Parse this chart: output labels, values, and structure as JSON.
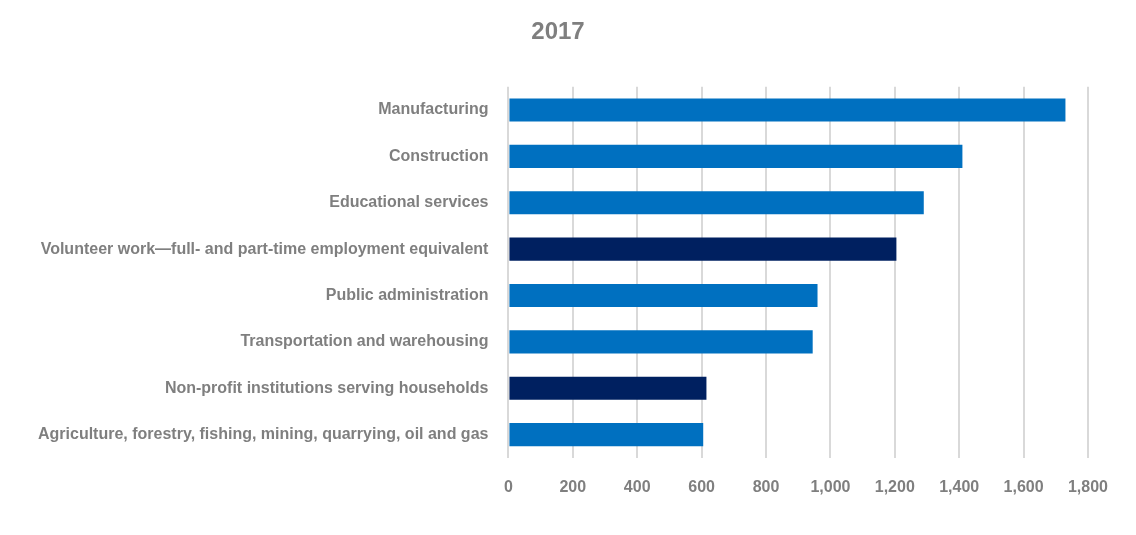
{
  "chart_data": {
    "type": "bar",
    "orientation": "horizontal",
    "title": "2017",
    "categories": [
      "Manufacturing",
      "Construction",
      "Educational services",
      "Volunteer work—full- and part-time employment equivalent",
      "Public administration",
      "Transportation and warehousing",
      "Non-profit institutions serving households",
      "Agriculture, forestry, fishing, mining, quarrying, oil and gas"
    ],
    "values": [
      1730,
      1410,
      1290,
      1205,
      960,
      945,
      615,
      605
    ],
    "colors": [
      "#0070c0",
      "#0070c0",
      "#0070c0",
      "#002060",
      "#0070c0",
      "#0070c0",
      "#002060",
      "#0070c0"
    ],
    "xlim": [
      0,
      1800
    ],
    "xticks": [
      0,
      200,
      400,
      600,
      800,
      {
        "value": 1000,
        "label": "1,000"
      },
      {
        "value": 1200,
        "label": "1,200"
      },
      {
        "value": 1400,
        "label": "1,400"
      },
      {
        "value": 1600,
        "label": "1,600"
      },
      {
        "value": 1800,
        "label": "1,800"
      }
    ],
    "grid": "x",
    "legend": false
  }
}
